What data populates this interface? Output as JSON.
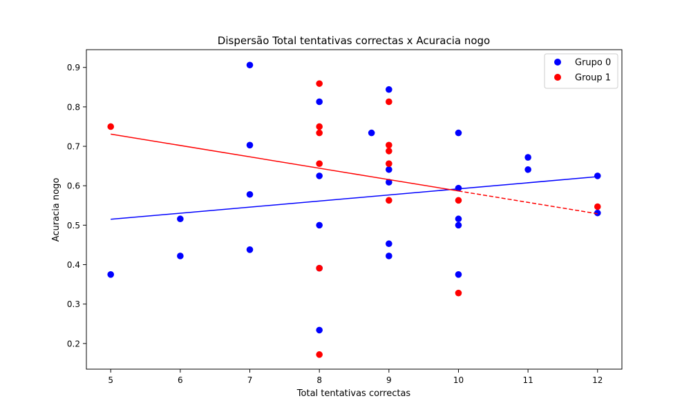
{
  "chart_data": {
    "type": "scatter",
    "title": "Dispersão Total tentativas correctas x Acuracia nogo",
    "xlabel": "Total tentativas correctas",
    "ylabel": "Acuracia nogo",
    "xlim": [
      4.65,
      12.35
    ],
    "ylim": [
      0.135,
      0.945
    ],
    "xticks": [
      5,
      6,
      7,
      8,
      9,
      10,
      11,
      12
    ],
    "yticks": [
      0.2,
      0.3,
      0.4,
      0.5,
      0.6,
      0.7,
      0.8,
      0.9
    ],
    "ytick_labels": [
      "0.2",
      "0.3",
      "0.4",
      "0.5",
      "0.6",
      "0.7",
      "0.8",
      "0.9"
    ],
    "grid": false,
    "legend_position": "top-right",
    "series": [
      {
        "name": "Grupo 0",
        "color": "#0000ff",
        "points": [
          [
            5,
            0.375
          ],
          [
            6,
            0.516
          ],
          [
            6,
            0.422
          ],
          [
            7,
            0.906
          ],
          [
            7,
            0.703
          ],
          [
            7,
            0.578
          ],
          [
            7,
            0.438
          ],
          [
            8,
            0.813
          ],
          [
            8,
            0.625
          ],
          [
            8,
            0.5
          ],
          [
            8,
            0.391
          ],
          [
            8,
            0.234
          ],
          [
            8.75,
            0.734
          ],
          [
            9,
            0.844
          ],
          [
            9,
            0.641
          ],
          [
            9,
            0.609
          ],
          [
            9,
            0.453
          ],
          [
            9,
            0.422
          ],
          [
            10,
            0.734
          ],
          [
            10,
            0.594
          ],
          [
            10,
            0.516
          ],
          [
            10,
            0.5
          ],
          [
            10,
            0.375
          ],
          [
            11,
            0.672
          ],
          [
            11,
            0.641
          ],
          [
            12,
            0.625
          ],
          [
            12,
            0.531
          ]
        ],
        "trend": {
          "x": [
            5,
            12
          ],
          "y": [
            0.515,
            0.623
          ],
          "segments": [
            {
              "x": [
                5,
                12
              ],
              "dash": "solid"
            }
          ]
        }
      },
      {
        "name": "Group 1",
        "color": "#ff0000",
        "points": [
          [
            5,
            0.75
          ],
          [
            8,
            0.859
          ],
          [
            8,
            0.75
          ],
          [
            8,
            0.734
          ],
          [
            8,
            0.656
          ],
          [
            8,
            0.391
          ],
          [
            8,
            0.172
          ],
          [
            9,
            0.813
          ],
          [
            9,
            0.703
          ],
          [
            9,
            0.688
          ],
          [
            9,
            0.656
          ],
          [
            9,
            0.563
          ],
          [
            10,
            0.563
          ],
          [
            10,
            0.328
          ],
          [
            12,
            0.547
          ]
        ],
        "trend": {
          "x": [
            5,
            12
          ],
          "y": [
            0.731,
            0.529
          ],
          "segments": [
            {
              "x": [
                5,
                10
              ],
              "dash": "solid"
            },
            {
              "x": [
                10,
                12
              ],
              "dash": "dashed"
            }
          ]
        }
      }
    ]
  }
}
